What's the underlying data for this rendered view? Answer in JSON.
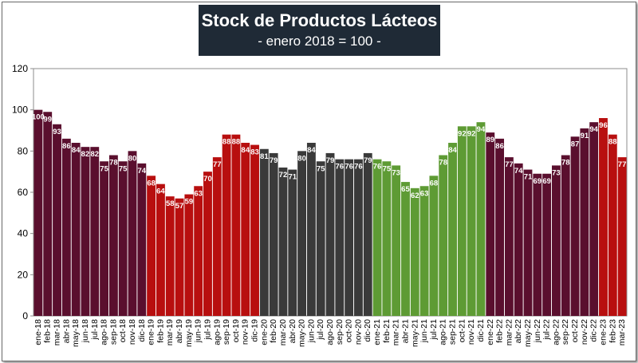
{
  "chart_data": {
    "type": "bar",
    "title": "Stock de Productos Lácteos",
    "subtitle": "- enero 2018 = 100 -",
    "xlabel": "",
    "ylabel": "",
    "ylim": [
      0,
      120
    ],
    "yticks": [
      0,
      20,
      40,
      60,
      80,
      100,
      120
    ],
    "grid": false,
    "legend": "none",
    "categories": [
      "ene-18",
      "feb-18",
      "mar-18",
      "abr-18",
      "may-18",
      "jun-18",
      "jul-18",
      "ago-18",
      "sep-18",
      "oct-18",
      "nov-18",
      "dic-18",
      "ene-19",
      "feb-19",
      "mar-19",
      "abr-19",
      "may-19",
      "jun-19",
      "jul-19",
      "ago-19",
      "sep-19",
      "oct-19",
      "nov-19",
      "dic-19",
      "ene-20",
      "feb-20",
      "mar-20",
      "abr-20",
      "may-20",
      "jun-20",
      "jul-20",
      "ago-20",
      "sep-20",
      "oct-20",
      "nov-20",
      "dic-20",
      "ene-21",
      "feb-21",
      "mar-21",
      "abr-21",
      "may-21",
      "jun-21",
      "jul-21",
      "ago-21",
      "sep-21",
      "oct-21",
      "nov-21",
      "dic-21",
      "ene-22",
      "feb-22",
      "mar-22",
      "abr-22",
      "may-22",
      "jun-22",
      "jul-22",
      "ago-22",
      "sep-22",
      "oct-22",
      "nov-22",
      "dic-22",
      "ene-23",
      "feb-23",
      "mar-23"
    ],
    "values": [
      100,
      99,
      93,
      86,
      84,
      82,
      82,
      75,
      78,
      75,
      80,
      74,
      68,
      64,
      58,
      57,
      59,
      63,
      70,
      77,
      88,
      88,
      84,
      83,
      81,
      79,
      72,
      71,
      80,
      84,
      75,
      79,
      76,
      76,
      76,
      79,
      76,
      75,
      73,
      65,
      62,
      63,
      68,
      78,
      84,
      92,
      92,
      94,
      89,
      86,
      77,
      74,
      71,
      69,
      69,
      73,
      78,
      87,
      91,
      94,
      96,
      88,
      77
    ],
    "data_labels": [
      "100",
      "99",
      "93",
      "86",
      "84",
      "82",
      "82",
      "75",
      "78",
      "75",
      "80",
      "74",
      "68",
      "64",
      "58",
      "57",
      "59",
      "63",
      "70",
      "77",
      "88",
      "88",
      "84",
      "83",
      "81",
      "79",
      "72",
      "71",
      "80",
      "84",
      "75",
      "79",
      "76",
      "76",
      "76",
      "79",
      "76",
      "75",
      "73",
      "65",
      "62",
      "63",
      "68",
      "78",
      "84",
      "92",
      "92",
      "94",
      "89",
      "86",
      "77",
      "74",
      "71",
      "69",
      "69",
      "73",
      "78",
      "87",
      "91",
      "94",
      "96",
      "88",
      "77"
    ],
    "bar_colors_by_year": {
      "2018": "#5a0f2e",
      "2019": "#b80f0f",
      "2020": "#3a3a3a",
      "2021": "#5e9b34",
      "2022": "#5a0f2e",
      "2023": "#b80f0f"
    }
  }
}
